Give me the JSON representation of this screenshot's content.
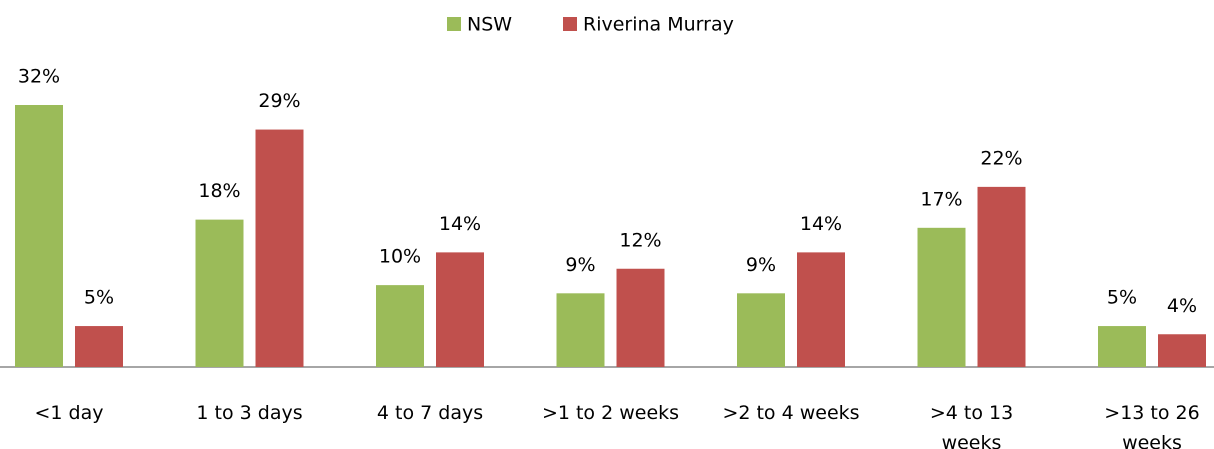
{
  "chart_data": {
    "type": "bar",
    "categories": [
      "<1 day",
      "1 to 3 days",
      "4 to 7 days",
      ">1 to 2 weeks",
      ">2 to 4 weeks",
      ">4 to 13 weeks",
      ">13 to 26 weeks"
    ],
    "series": [
      {
        "name": "NSW",
        "color": "#9bbb59",
        "values": [
          32,
          18,
          10,
          9,
          9,
          17,
          5
        ],
        "value_labels": [
          "32%",
          "18%",
          "10%",
          "9%",
          "9%",
          "17%",
          "5%"
        ]
      },
      {
        "name": "Riverina Murray",
        "color": "#c0504d",
        "values": [
          5,
          29,
          14,
          12,
          14,
          22,
          4
        ],
        "value_labels": [
          "5%",
          "29%",
          "14%",
          "12%",
          "14%",
          "22%",
          "4%"
        ]
      }
    ],
    "legend": "top"
  }
}
